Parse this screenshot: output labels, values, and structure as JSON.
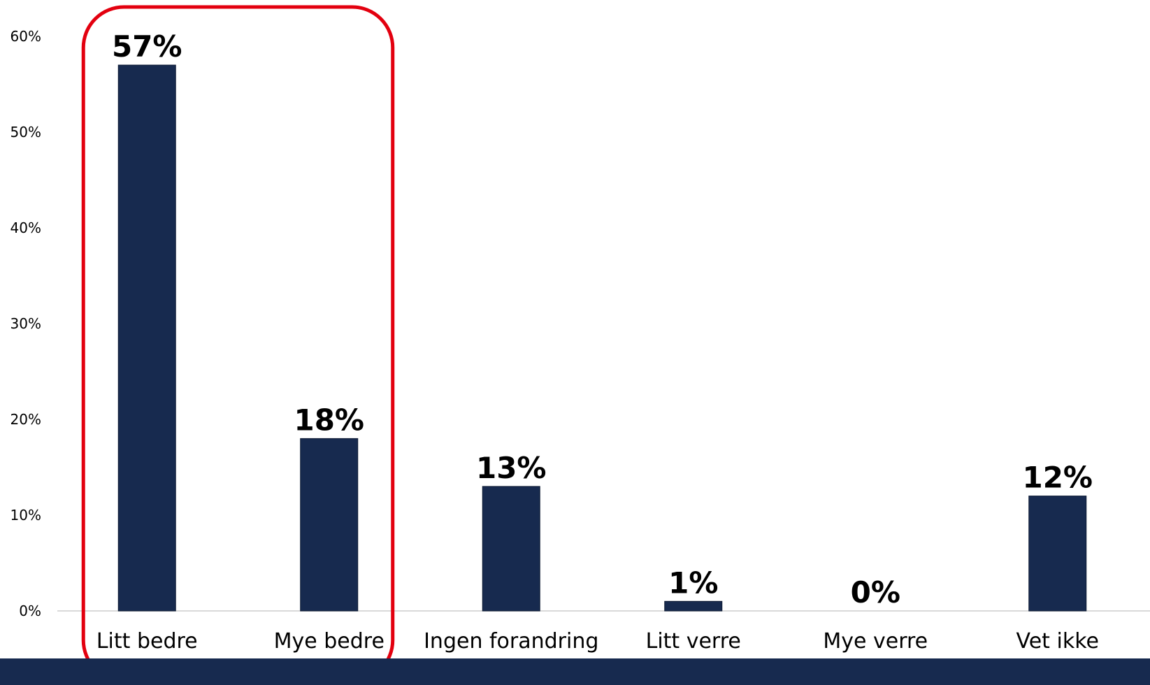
{
  "colors": {
    "bar": "#172a4f",
    "axis": "#d9d9d9",
    "highlight": "#e3000f",
    "footer": "#172a4f"
  },
  "chart_data": {
    "type": "bar",
    "categories": [
      "Litt bedre",
      "Mye bedre",
      "Ingen forandring",
      "Litt verre",
      "Mye verre",
      "Vet ikke"
    ],
    "values": [
      57,
      18,
      13,
      1,
      0,
      12
    ],
    "data_labels": [
      "57%",
      "18%",
      "13%",
      "1%",
      "0%",
      "12%"
    ],
    "yticks": [
      "0%",
      "10%",
      "20%",
      "30%",
      "40%",
      "50%",
      "60%"
    ],
    "ylim": [
      0,
      60
    ],
    "grid": false,
    "legend": "none",
    "highlighted_categories": [
      "Litt bedre",
      "Mye bedre"
    ]
  }
}
